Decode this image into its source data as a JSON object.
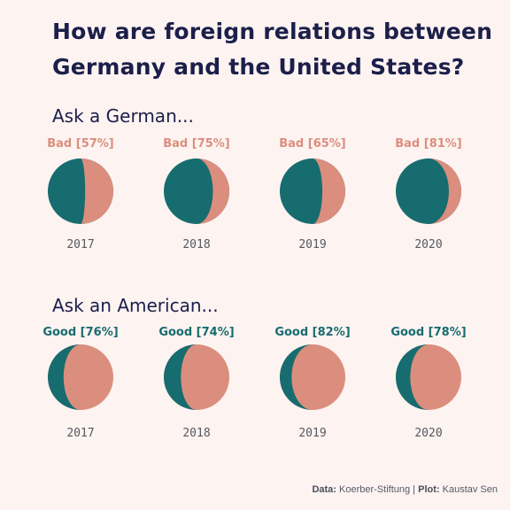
{
  "title": "How are foreign relations between Germany and the United States?",
  "colors": {
    "background": "#fdf3f1",
    "bad": "#db8e7e",
    "good": "#176c6f",
    "ink": "#1b1f4a"
  },
  "source": {
    "data_label": "Data:",
    "data_value": "Koerber-Stiftung",
    "separator": " | ",
    "plot_label": "Plot:",
    "plot_value": "Kaustav Sen"
  },
  "chart_data": [
    {
      "type": "pie",
      "title": "Ask a German...",
      "highlight": "bad",
      "categories": [
        "2017",
        "2018",
        "2019",
        "2020"
      ],
      "labels": [
        "Bad [57%]",
        "Bad [75%]",
        "Bad [65%]",
        "Bad [81%]"
      ],
      "values": [
        57,
        75,
        65,
        81
      ]
    },
    {
      "type": "pie",
      "title": "Ask an American...",
      "highlight": "good",
      "categories": [
        "2017",
        "2018",
        "2019",
        "2020"
      ],
      "labels": [
        "Good [76%]",
        "Good [74%]",
        "Good [82%]",
        "Good [78%]"
      ],
      "values": [
        76,
        74,
        82,
        78
      ]
    }
  ]
}
